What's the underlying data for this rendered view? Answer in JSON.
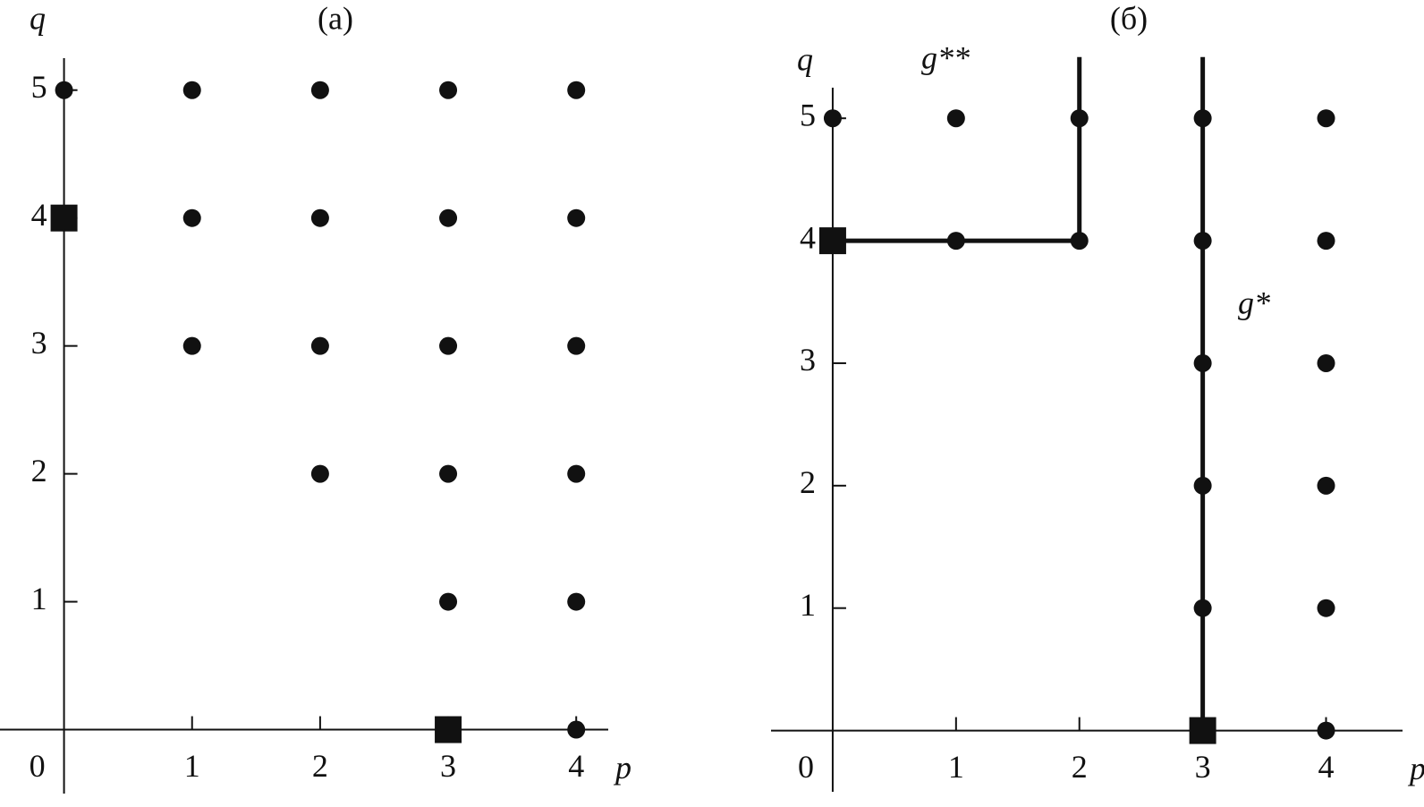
{
  "chart_data": [
    {
      "type": "lattice",
      "title": "(a)",
      "x_label": "p",
      "y_label": "q",
      "color": "#111111",
      "xlim": [
        -0.5,
        4.25
      ],
      "ylim": [
        -0.5,
        5.25
      ],
      "xticks": [
        0,
        1,
        2,
        3,
        4
      ],
      "yticks": [
        1,
        2,
        3,
        4,
        5
      ],
      "points": {
        "x": [
          0,
          1,
          2,
          3,
          4,
          1,
          2,
          3,
          4,
          1,
          2,
          3,
          4,
          2,
          3,
          4,
          3,
          4,
          4
        ],
        "y": [
          5,
          5,
          5,
          5,
          5,
          4,
          4,
          4,
          4,
          3,
          3,
          3,
          3,
          2,
          2,
          2,
          1,
          1,
          0
        ]
      },
      "squares": {
        "x": [
          0,
          3
        ],
        "y": [
          4,
          0
        ]
      },
      "paths": []
    },
    {
      "type": "lattice",
      "title": "(б)",
      "x_label": "p",
      "y_label": "q",
      "color": "#111111",
      "xlim": [
        -0.5,
        4.62
      ],
      "ylim": [
        -0.5,
        5.25
      ],
      "xticks": [
        0,
        1,
        2,
        3,
        4
      ],
      "yticks": [
        1,
        2,
        3,
        4,
        5
      ],
      "points": {
        "x": [
          0,
          1,
          2,
          3,
          4,
          1,
          2,
          3,
          4,
          3,
          4,
          3,
          4,
          3,
          4,
          4
        ],
        "y": [
          5,
          5,
          5,
          5,
          5,
          4,
          4,
          4,
          4,
          3,
          3,
          2,
          2,
          1,
          1,
          0
        ]
      },
      "squares": {
        "x": [
          0,
          3
        ],
        "y": [
          4,
          0
        ]
      },
      "paths": [
        {
          "label": "g**",
          "x": [
            0,
            1,
            2,
            2
          ],
          "y": [
            4,
            4,
            4,
            5.5
          ]
        },
        {
          "label": "g*",
          "x": [
            3,
            3
          ],
          "y": [
            0,
            5.5
          ]
        }
      ]
    }
  ]
}
